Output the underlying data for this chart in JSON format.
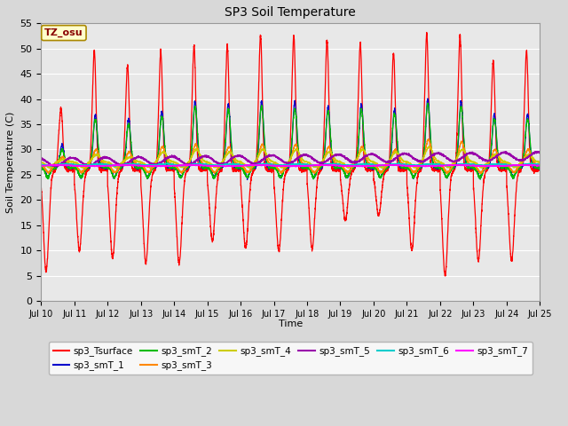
{
  "title": "SP3 Soil Temperature",
  "xlabel": "Time",
  "ylabel": "Soil Temperature (C)",
  "ylim": [
    0,
    55
  ],
  "yticks": [
    0,
    5,
    10,
    15,
    20,
    25,
    30,
    35,
    40,
    45,
    50,
    55
  ],
  "annotation": "TZ_osu",
  "fig_bg_color": "#d8d8d8",
  "plot_bg_color": "#e8e8e8",
  "series_colors": {
    "sp3_Tsurface": "#ff0000",
    "sp3_smT_1": "#0000cc",
    "sp3_smT_2": "#00bb00",
    "sp3_smT_3": "#ff8800",
    "sp3_smT_4": "#cccc00",
    "sp3_smT_5": "#9900aa",
    "sp3_smT_6": "#00cccc",
    "sp3_smT_7": "#ff00ff"
  },
  "n_days": 15,
  "start_day": 10
}
